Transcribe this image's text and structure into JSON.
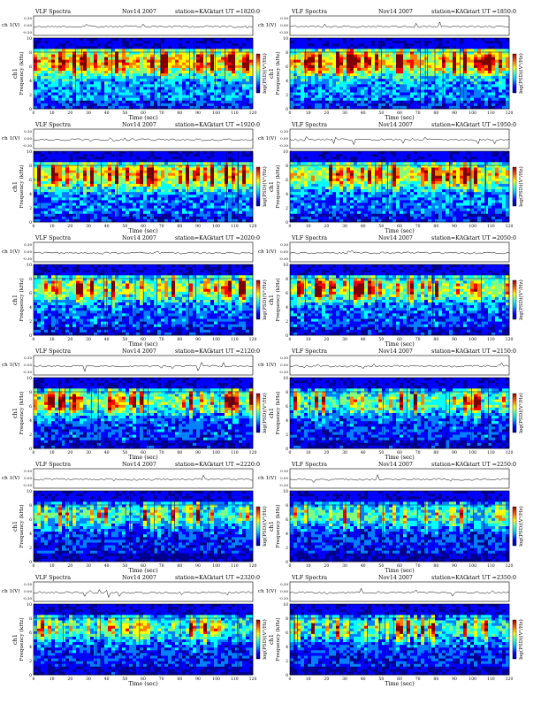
{
  "chart_data": {
    "type": "heatmap",
    "figure": {
      "header_prefix": "VLF Spectra",
      "date": "Nov14 2007",
      "station": "station=KAG",
      "ut_prefix": "start UT =",
      "waveform_label": "ch 1(V)",
      "waveform_ticks": [
        "0.30",
        "0.00",
        "-0.30"
      ],
      "ylabel_channel": "ch1",
      "ylabel": "Frequency  (kHz)",
      "yticks": [
        "0",
        "2",
        "4",
        "6",
        "8",
        "10"
      ],
      "ylim": [
        0,
        10
      ],
      "xlabel": "Time  (sec)",
      "xticks": [
        "0",
        "10",
        "20",
        "30",
        "40",
        "50",
        "60",
        "70",
        "80",
        "90",
        "100",
        "110",
        "120"
      ],
      "xlim": [
        0,
        120
      ],
      "colorbar_label": "log(PSD)(V²/Hz)",
      "colorscale": [
        "#00008f",
        "#0000ff",
        "#0080ff",
        "#00ffff",
        "#80ff80",
        "#ffff00",
        "#ff8000",
        "#ff0000",
        "#800000"
      ],
      "grid": false,
      "layout": "6 rows x 2 columns"
    },
    "panels": [
      {
        "start_ut": "1820:0",
        "level": 0.64
      },
      {
        "start_ut": "1850:0",
        "level": 0.62
      },
      {
        "start_ut": "1920:0",
        "level": 0.58
      },
      {
        "start_ut": "1950:0",
        "level": 0.56
      },
      {
        "start_ut": "2020:0",
        "level": 0.5
      },
      {
        "start_ut": "2050:0",
        "level": 0.5
      },
      {
        "start_ut": "2120:0",
        "level": 0.46
      },
      {
        "start_ut": "2150:0",
        "level": 0.44
      },
      {
        "start_ut": "2220:0",
        "level": 0.4
      },
      {
        "start_ut": "2250:0",
        "level": 0.4
      },
      {
        "start_ut": "2320:0",
        "level": 0.42
      },
      {
        "start_ut": "2350:0",
        "level": 0.4
      }
    ]
  }
}
